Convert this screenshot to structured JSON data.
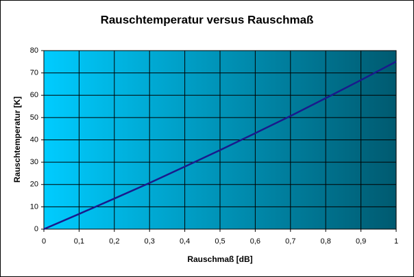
{
  "chart_data": {
    "type": "line",
    "title": "Rauschtemperatur versus Rauschmaß",
    "xlabel": "Rauschmaß [dB]",
    "ylabel": "Rauschtemperatur [K]",
    "x": [
      0,
      0.1,
      0.2,
      0.3,
      0.4,
      0.5,
      0.6,
      0.7,
      0.8,
      0.9,
      1
    ],
    "series": [
      {
        "color": "#1a1a8c",
        "values": [
          0,
          6.8,
          13.7,
          20.7,
          28.0,
          35.4,
          43.0,
          50.7,
          58.7,
          66.8,
          75.1
        ]
      }
    ],
    "xlim": [
      0,
      1
    ],
    "xticks": [
      0,
      {
        "value": 0.1,
        "label": "0,1"
      },
      {
        "value": 0.2,
        "label": "0,2"
      },
      {
        "value": 0.3,
        "label": "0,3"
      },
      {
        "value": 0.4,
        "label": "0,4"
      },
      {
        "value": 0.5,
        "label": "0,5"
      },
      {
        "value": 0.6,
        "label": "0,6"
      },
      {
        "value": 0.7,
        "label": "0,7"
      },
      {
        "value": 0.8,
        "label": "0,8"
      },
      {
        "value": 0.9,
        "label": "0,9"
      },
      1
    ],
    "ylim": [
      0,
      80
    ],
    "yticks": [
      0,
      10,
      20,
      30,
      40,
      50,
      60,
      70,
      80
    ],
    "grid": true,
    "background_gradient": [
      "#00ccff",
      "#005a70"
    ]
  }
}
